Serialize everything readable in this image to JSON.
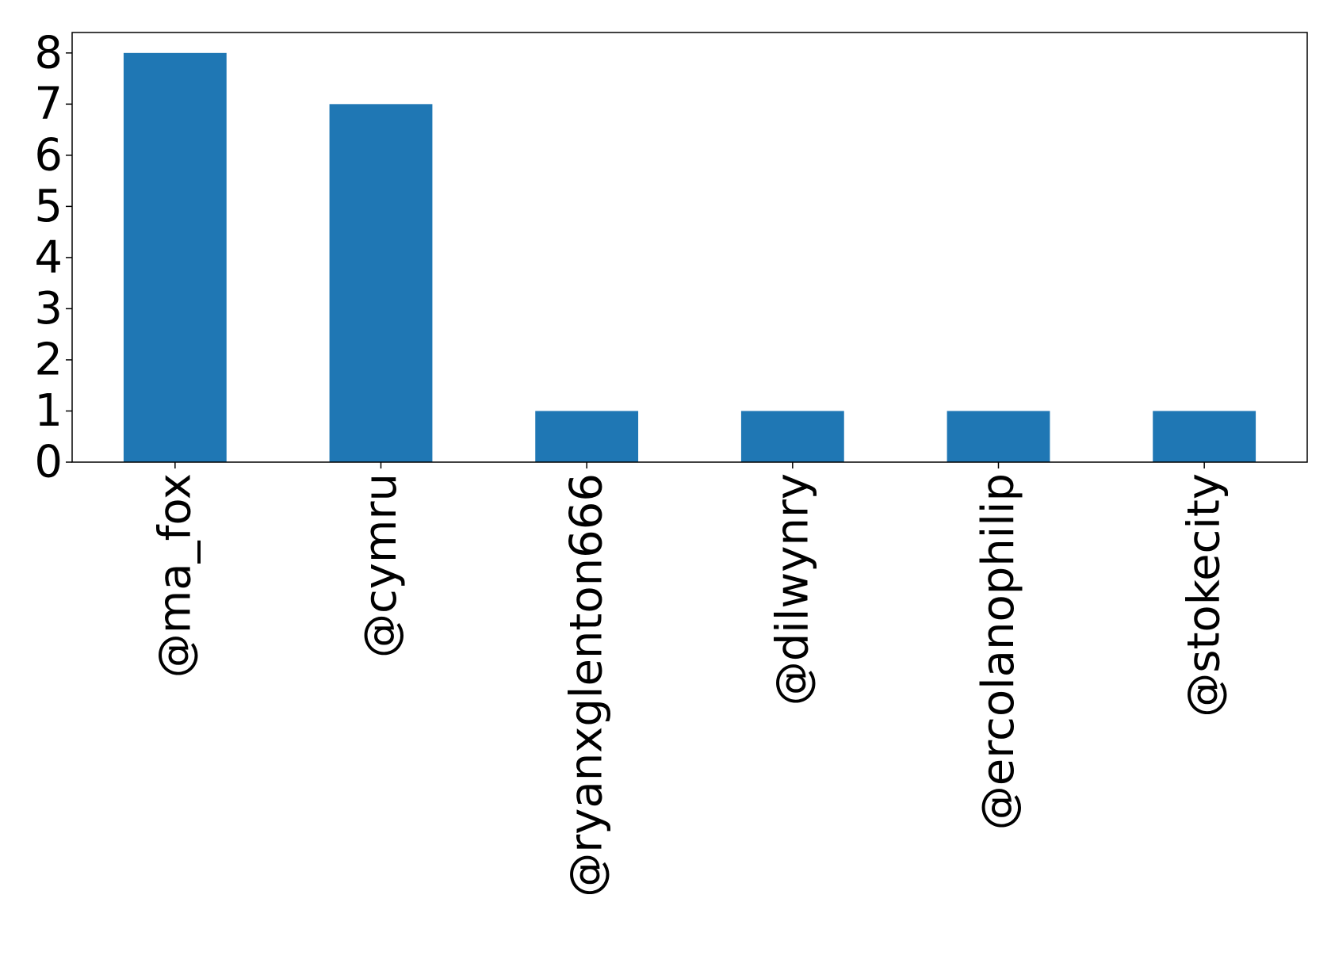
{
  "chart_data": {
    "type": "bar",
    "title": "",
    "xlabel": "",
    "ylabel": "",
    "categories": [
      "@ma_fox",
      "@cymru",
      "@ryanxglenton666",
      "@dilwynry",
      "@ercolanophilip",
      "@stokecity"
    ],
    "values": [
      8,
      7,
      1,
      1,
      1,
      1
    ],
    "ylim": [
      0,
      8.4
    ],
    "yticks": [
      "0",
      "1",
      "2",
      "3",
      "4",
      "5",
      "6",
      "7",
      "8"
    ],
    "bar_color": "#1f77b4",
    "grid": false,
    "legend": "none"
  }
}
